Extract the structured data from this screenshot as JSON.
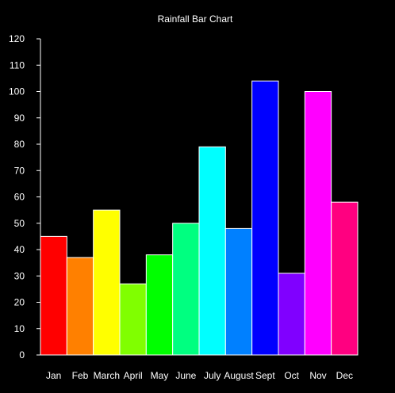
{
  "chart_data": {
    "type": "bar",
    "title": "Rainfall Bar Chart",
    "xlabel": "",
    "ylabel": "",
    "categories": [
      "Jan",
      "Feb",
      "March",
      "April",
      "May",
      "June",
      "July",
      "August",
      "Sept",
      "Oct",
      "Nov",
      "Dec"
    ],
    "values": [
      45,
      37,
      55,
      27,
      38,
      50,
      79,
      48,
      104,
      31,
      100,
      58
    ],
    "colors": [
      "#ff0000",
      "#ff8000",
      "#ffff00",
      "#80ff00",
      "#00ff00",
      "#00ff80",
      "#00ffff",
      "#0080ff",
      "#0000ff",
      "#8000ff",
      "#ff00ff",
      "#ff0080"
    ],
    "ylim": [
      0,
      120
    ],
    "yticks": [
      0,
      10,
      20,
      30,
      40,
      50,
      60,
      70,
      80,
      90,
      100,
      110,
      120
    ],
    "grid": false,
    "legend": "none",
    "background": "#000000",
    "axis_color": "#ffffff",
    "bar_border_color": "#ffffff"
  }
}
